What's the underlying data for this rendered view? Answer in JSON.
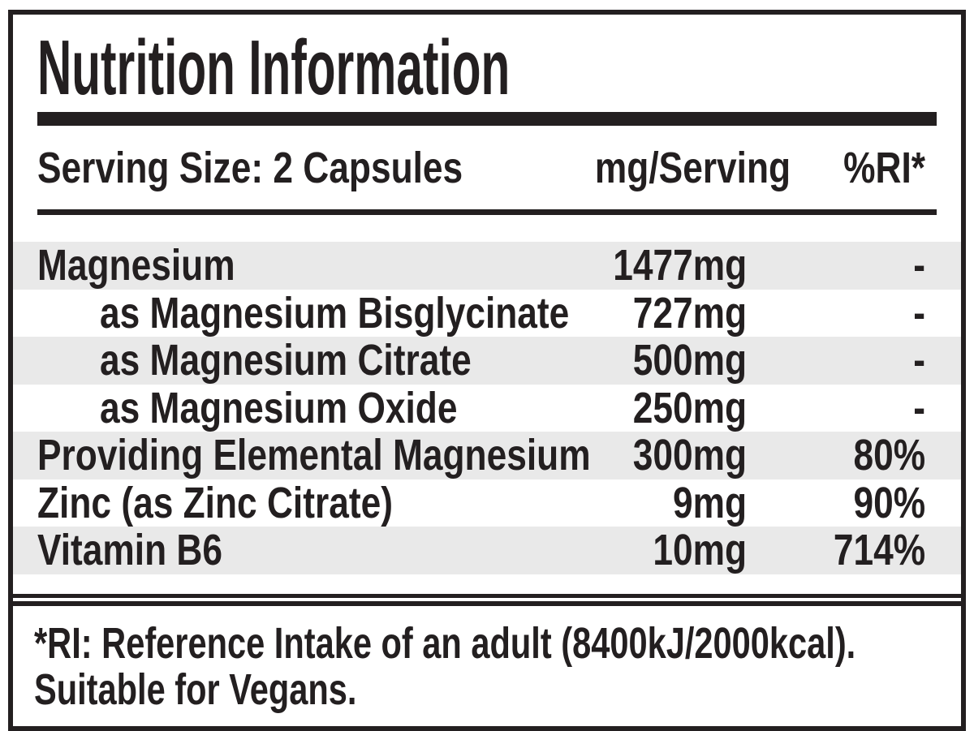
{
  "label": {
    "title": "Nutrition Information",
    "header": {
      "serving": "Serving Size: 2 Capsules",
      "amount_col": "mg/Serving",
      "ri_col": "%RI*"
    },
    "rows": [
      {
        "name": "Magnesium",
        "amount": "1477mg",
        "ri": "-",
        "indent": false,
        "shaded": true
      },
      {
        "name": "as Magnesium Bisglycinate",
        "amount": "727mg",
        "ri": "-",
        "indent": true,
        "shaded": false
      },
      {
        "name": "as Magnesium Citrate",
        "amount": "500mg",
        "ri": "-",
        "indent": true,
        "shaded": true
      },
      {
        "name": "as Magnesium Oxide",
        "amount": "250mg",
        "ri": "-",
        "indent": true,
        "shaded": false
      },
      {
        "name": "Providing Elemental Magnesium",
        "amount": "300mg",
        "ri": "80%",
        "indent": false,
        "shaded": true
      },
      {
        "name": "Zinc (as Zinc Citrate)",
        "amount": "9mg",
        "ri": "90%",
        "indent": false,
        "shaded": false
      },
      {
        "name": "Vitamin B6",
        "amount": "10mg",
        "ri": "714%",
        "indent": false,
        "shaded": true
      }
    ],
    "footnote_line1": "*RI: Reference Intake of an adult (8400kJ/2000kcal).",
    "footnote_line2": "Suitable for Vegans.",
    "colors": {
      "ink": "#231f20",
      "stripe": "#e9e9e9",
      "paper": "#ffffff"
    }
  }
}
